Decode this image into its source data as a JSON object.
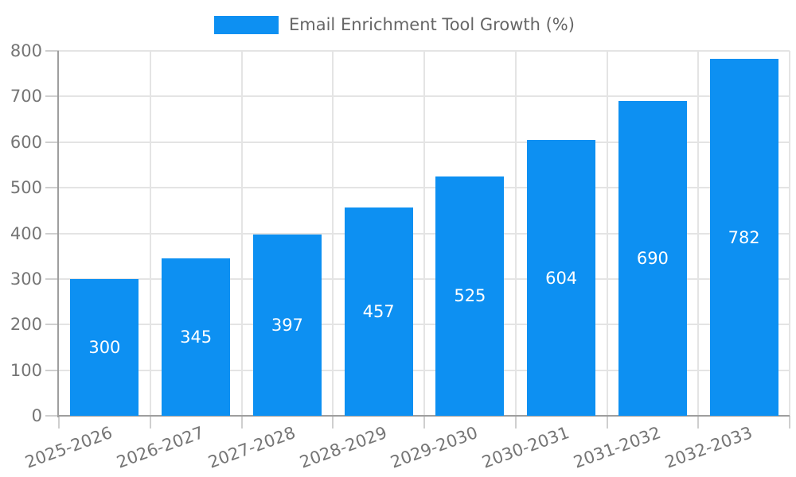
{
  "chart": {
    "legend": {
      "position": "top"
    },
    "colors": {
      "bar": "#0d90f2",
      "axis_line": "#9e9e9e",
      "gridline": "#e4e4e4",
      "tick": "#cfcfcf",
      "tick_label": "#757575",
      "value_label": "#ffffff",
      "legend_text": "#666666",
      "background": "#ffffff"
    }
  },
  "chart_data": {
    "type": "bar",
    "title": "",
    "legend_position": "top",
    "categories": [
      "2025-2026",
      "2026-2027",
      "2027-2028",
      "2028-2029",
      "2029-2030",
      "2030-2031",
      "2031-2032",
      "2032-2033"
    ],
    "series": [
      {
        "name": "Email Enrichment Tool Growth (%)",
        "values": [
          300,
          345,
          397,
          457,
          525,
          604,
          690,
          782
        ]
      }
    ],
    "xlabel": "",
    "ylabel": "",
    "ylim": [
      0,
      800
    ],
    "ytick_step": 100,
    "ytick_labels": [
      "0",
      "100",
      "200",
      "300",
      "400",
      "500",
      "600",
      "700",
      "800"
    ],
    "grid": true,
    "vertical_grid": true,
    "value_labels": "inside-center",
    "x_label_rotation_deg": -20
  }
}
